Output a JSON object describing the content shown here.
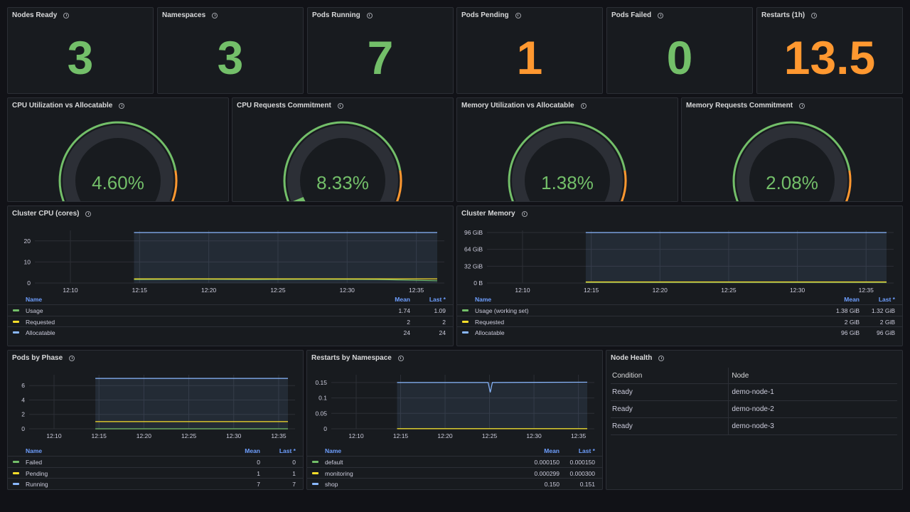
{
  "colors": {
    "green": "#73bf69",
    "orange": "#ff9830",
    "red": "#f2495c",
    "yellow": "#fade2a",
    "blue": "#8ab8ff",
    "track": "#2c2f36"
  },
  "stats": [
    {
      "title": "Nodes Ready",
      "value": "3",
      "color": "#73bf69"
    },
    {
      "title": "Namespaces",
      "value": "3",
      "color": "#73bf69"
    },
    {
      "title": "Pods Running",
      "value": "7",
      "color": "#73bf69"
    },
    {
      "title": "Pods Pending",
      "value": "1",
      "color": "#ff9830"
    },
    {
      "title": "Pods Failed",
      "value": "0",
      "color": "#73bf69"
    },
    {
      "title": "Restarts (1h)",
      "value": "13.5",
      "color": "#ff9830"
    }
  ],
  "gauges": [
    {
      "title": "CPU Utilization vs Allocatable",
      "value": "4.60%",
      "percent": 4.6
    },
    {
      "title": "CPU Requests Commitment",
      "value": "8.33%",
      "percent": 8.33
    },
    {
      "title": "Memory Utilization vs Allocatable",
      "value": "1.38%",
      "percent": 1.38
    },
    {
      "title": "Memory Requests Commitment",
      "value": "2.08%",
      "percent": 2.08
    }
  ],
  "cluster_cpu": {
    "title": "Cluster CPU (cores)",
    "legend_header": {
      "name": "Name",
      "mean": "Mean",
      "last": "Last *"
    },
    "legend": [
      {
        "name": "Usage",
        "mean": "1.74",
        "last": "1.09",
        "color": "#73bf69"
      },
      {
        "name": "Requested",
        "mean": "2",
        "last": "2",
        "color": "#fade2a"
      },
      {
        "name": "Allocatable",
        "mean": "24",
        "last": "24",
        "color": "#8ab8ff"
      }
    ]
  },
  "cluster_memory": {
    "title": "Cluster Memory",
    "legend_header": {
      "name": "Name",
      "mean": "Mean",
      "last": "Last *"
    },
    "legend": [
      {
        "name": "Usage (working set)",
        "mean": "1.38 GiB",
        "last": "1.32 GiB",
        "color": "#73bf69"
      },
      {
        "name": "Requested",
        "mean": "2 GiB",
        "last": "2 GiB",
        "color": "#fade2a"
      },
      {
        "name": "Allocatable",
        "mean": "96 GiB",
        "last": "96 GiB",
        "color": "#8ab8ff"
      }
    ]
  },
  "pods_by_phase": {
    "title": "Pods by Phase",
    "legend_header": {
      "name": "Name",
      "mean": "Mean",
      "last": "Last *"
    },
    "legend": [
      {
        "name": "Failed",
        "mean": "0",
        "last": "0",
        "color": "#73bf69"
      },
      {
        "name": "Pending",
        "mean": "1",
        "last": "1",
        "color": "#fade2a"
      },
      {
        "name": "Running",
        "mean": "7",
        "last": "7",
        "color": "#8ab8ff"
      }
    ]
  },
  "restarts_by_ns": {
    "title": "Restarts by Namespace",
    "legend_header": {
      "name": "Name",
      "mean": "Mean",
      "last": "Last *"
    },
    "legend": [
      {
        "name": "default",
        "mean": "0.000150",
        "last": "0.000150",
        "color": "#73bf69"
      },
      {
        "name": "monitoring",
        "mean": "0.000299",
        "last": "0.000300",
        "color": "#fade2a"
      },
      {
        "name": "shop",
        "mean": "0.150",
        "last": "0.151",
        "color": "#8ab8ff"
      }
    ]
  },
  "node_health": {
    "title": "Node Health",
    "columns": [
      "Condition",
      "Node"
    ],
    "rows": [
      [
        "Ready",
        "demo-node-1"
      ],
      [
        "Ready",
        "demo-node-2"
      ],
      [
        "Ready",
        "demo-node-3"
      ]
    ]
  },
  "chart_data": [
    {
      "type": "line",
      "title": "Cluster CPU (cores)",
      "x": [
        "12:10",
        "12:15",
        "12:20",
        "12:25",
        "12:30",
        "12:35"
      ],
      "yticks": [
        "0",
        "10",
        "20"
      ],
      "ylim": [
        0,
        25
      ],
      "series": [
        {
          "name": "Usage",
          "values": [
            1.7,
            1.8,
            1.7,
            1.75,
            1.7,
            1.09
          ]
        },
        {
          "name": "Requested",
          "values": [
            2,
            2,
            2,
            2,
            2,
            2
          ]
        },
        {
          "name": "Allocatable",
          "values": [
            24,
            24,
            24,
            24,
            24,
            24
          ]
        }
      ]
    },
    {
      "type": "line",
      "title": "Cluster Memory",
      "x": [
        "12:10",
        "12:15",
        "12:20",
        "12:25",
        "12:30",
        "12:35"
      ],
      "yticks": [
        "0 B",
        "32 GiB",
        "64 GiB",
        "96 GiB"
      ],
      "ylim": [
        0,
        100
      ],
      "series": [
        {
          "name": "Usage (working set)",
          "values": [
            1.4,
            1.4,
            1.38,
            1.38,
            1.35,
            1.32
          ]
        },
        {
          "name": "Requested",
          "values": [
            2,
            2,
            2,
            2,
            2,
            2
          ]
        },
        {
          "name": "Allocatable",
          "values": [
            96,
            96,
            96,
            96,
            96,
            96
          ]
        }
      ]
    },
    {
      "type": "line",
      "title": "Pods by Phase",
      "x": [
        "12:10",
        "12:15",
        "12:20",
        "12:25",
        "12:30",
        "12:35"
      ],
      "yticks": [
        "0",
        "2",
        "4",
        "6"
      ],
      "ylim": [
        0,
        7.5
      ],
      "series": [
        {
          "name": "Failed",
          "values": [
            0,
            0,
            0,
            0,
            0,
            0
          ]
        },
        {
          "name": "Pending",
          "values": [
            1,
            1,
            1,
            1,
            1,
            1
          ]
        },
        {
          "name": "Running",
          "values": [
            7,
            7,
            7,
            7,
            7,
            7
          ]
        }
      ]
    },
    {
      "type": "line",
      "title": "Restarts by Namespace",
      "x": [
        "12:10",
        "12:15",
        "12:20",
        "12:25",
        "12:30",
        "12:35"
      ],
      "yticks": [
        "0",
        "0.05",
        "0.1",
        "0.15"
      ],
      "ylim": [
        0,
        0.175
      ],
      "series": [
        {
          "name": "default",
          "values": [
            0.00015,
            0.00015,
            0.00015,
            0.00015,
            0.00015,
            0.00015
          ]
        },
        {
          "name": "monitoring",
          "values": [
            0.0003,
            0.0003,
            0.0003,
            0.0003,
            0.0003,
            0.0003
          ]
        },
        {
          "name": "shop",
          "values": [
            0.15,
            0.15,
            0.15,
            0.15,
            0.15,
            0.151
          ]
        }
      ]
    }
  ]
}
